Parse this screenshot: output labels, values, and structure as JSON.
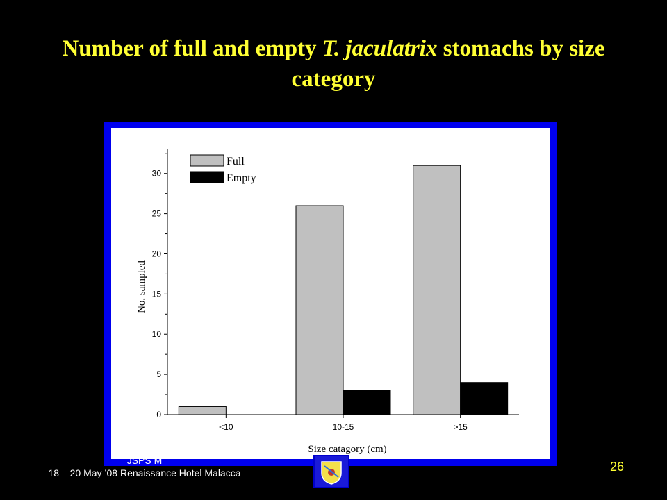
{
  "slide": {
    "title_pre": "Number of full and empty ",
    "title_em": "T. jaculatrix",
    "title_post": " stomachs by size category",
    "footer_line1": "JSPS M",
    "footer_line2": "18 – 20 May ’08 Renaissance Hotel Malacca",
    "page_number": "26",
    "title_color": "#FFFF33",
    "background_color": "#000000",
    "frame_color": "#0000EE"
  },
  "chart_data": {
    "type": "bar",
    "categories": [
      "<10",
      "10-15",
      ">15"
    ],
    "series": [
      {
        "name": "Full",
        "values": [
          1,
          26,
          31
        ],
        "color": "#C0C0C0"
      },
      {
        "name": "Empty",
        "values": [
          0,
          3,
          4
        ],
        "color": "#000000"
      }
    ],
    "xlabel": "Size catagory (cm)",
    "ylabel": "No. sampled",
    "ylim": [
      0,
      33
    ],
    "yticks": [
      0,
      5,
      10,
      15,
      20,
      25,
      30
    ],
    "grid": false,
    "legend_position": "top-left"
  }
}
